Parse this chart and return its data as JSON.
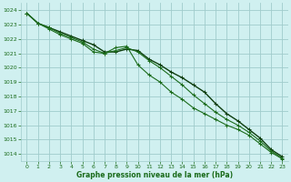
{
  "title": "Graphe pression niveau de la mer (hPa)",
  "bg_color": "#d0f0f0",
  "grid_color": "#a0cccc",
  "line_color": "#1a6b1a",
  "dark_line_color": "#0d3d0d",
  "x_ticks": [
    0,
    1,
    2,
    3,
    4,
    5,
    6,
    7,
    8,
    9,
    10,
    11,
    12,
    13,
    14,
    15,
    16,
    17,
    18,
    19,
    20,
    21,
    22,
    23
  ],
  "ylim": [
    1013.5,
    1024.5
  ],
  "yticks": [
    1014,
    1015,
    1016,
    1017,
    1018,
    1019,
    1020,
    1021,
    1022,
    1023,
    1024
  ],
  "series": [
    [
      1023.8,
      1023.1,
      1022.8,
      1022.5,
      1022.2,
      1021.9,
      1021.6,
      1021.1,
      1021.1,
      1021.3,
      1021.2,
      1020.6,
      1020.2,
      1019.7,
      1019.3,
      1018.8,
      1018.3,
      1017.5,
      1016.8,
      1016.3,
      1015.7,
      1015.1,
      1014.3,
      1013.8
    ],
    [
      1023.8,
      1023.1,
      1022.7,
      1022.3,
      1022.0,
      1021.7,
      1021.1,
      1021.0,
      1021.4,
      1021.5,
      1020.2,
      1019.5,
      1019.0,
      1018.3,
      1017.8,
      1017.2,
      1016.8,
      1016.4,
      1016.0,
      1015.7,
      1015.3,
      1014.7,
      1014.1,
      1013.65
    ],
    [
      1023.8,
      1023.1,
      1022.8,
      1022.4,
      1022.1,
      1021.8,
      1021.3,
      1021.0,
      1021.2,
      1021.4,
      1021.1,
      1020.5,
      1020.0,
      1019.4,
      1018.8,
      1018.1,
      1017.5,
      1016.9,
      1016.4,
      1016.0,
      1015.5,
      1014.9,
      1014.2,
      1013.7
    ]
  ]
}
